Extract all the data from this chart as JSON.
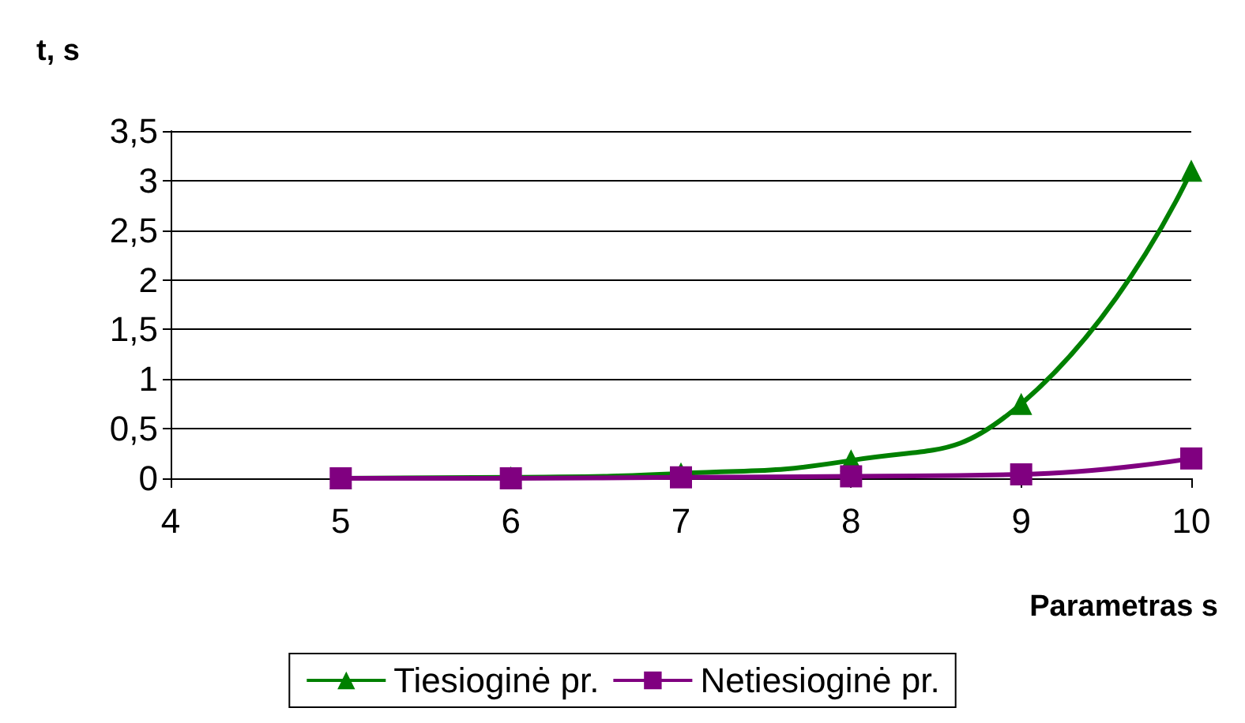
{
  "chart_data": {
    "type": "line",
    "ylabel": "t, s",
    "xlabel": "Parametras s",
    "x": [
      5,
      6,
      7,
      8,
      9,
      10
    ],
    "series": [
      {
        "name": "Tiesioginė pr.",
        "color": "#008000",
        "marker": "triangle",
        "values": [
          0,
          0.01,
          0.05,
          0.18,
          0.75,
          3.1
        ]
      },
      {
        "name": "Netiesioginė pr.",
        "color": "#800080",
        "marker": "square",
        "values": [
          0,
          0,
          0.01,
          0.02,
          0.04,
          0.2
        ]
      }
    ],
    "xlim": [
      4,
      10
    ],
    "xticks": [
      4,
      5,
      6,
      7,
      8,
      9,
      10
    ],
    "ylim": [
      0,
      3.5
    ],
    "yticks": [
      0,
      {
        "value": 0.5,
        "label": "0,5"
      },
      1,
      {
        "value": 1.5,
        "label": "1,5"
      },
      2,
      {
        "value": 2.5,
        "label": "2,5"
      },
      3,
      {
        "value": 3.5,
        "label": "3,5"
      }
    ],
    "grid": "y",
    "legend": "bottom"
  }
}
